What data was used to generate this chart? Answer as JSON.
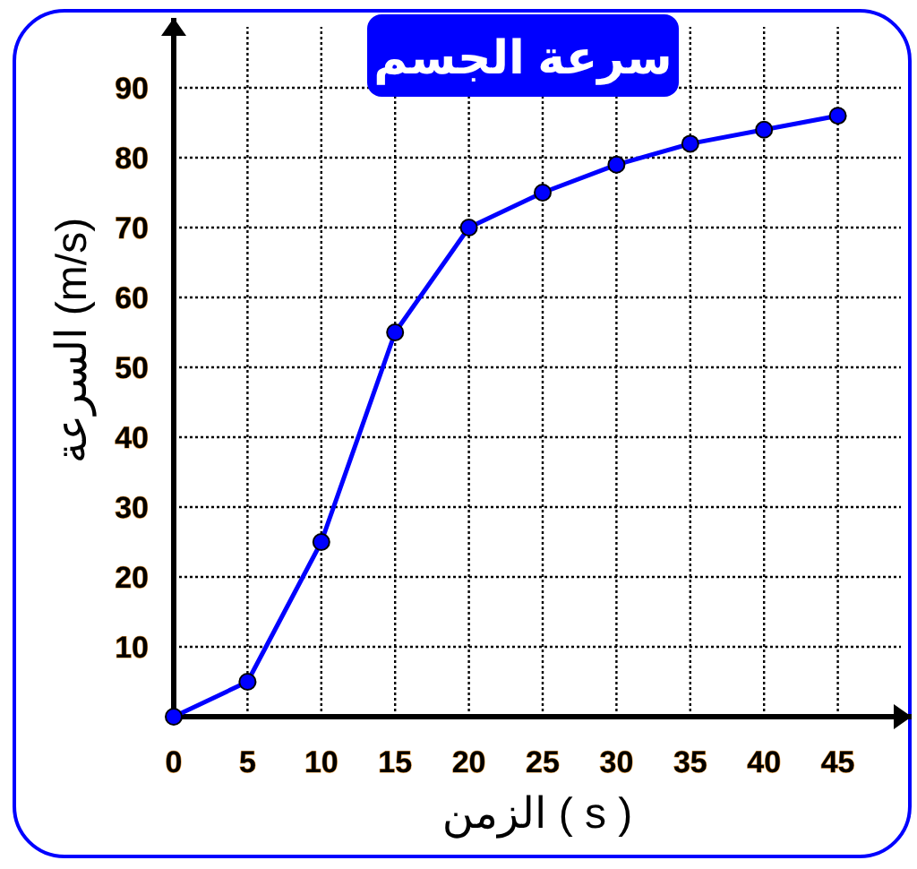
{
  "chart_data": {
    "type": "line",
    "title": "سرعة الجسم",
    "xlabel": "الزمن ( s )",
    "ylabel": "السرعة (m/s)",
    "x": [
      0,
      5,
      10,
      15,
      20,
      25,
      30,
      35,
      40,
      45
    ],
    "series": [
      {
        "color": "#0000ff",
        "values": [
          0,
          5,
          25,
          55,
          70,
          75,
          79,
          82,
          84,
          86
        ]
      }
    ],
    "xlim": [
      0,
      50
    ],
    "ylim": [
      0,
      100
    ],
    "xticks": [
      0,
      5,
      10,
      15,
      20,
      25,
      30,
      35,
      40,
      45
    ],
    "yticks": [
      10,
      20,
      30,
      40,
      50,
      60,
      70,
      80,
      90
    ],
    "grid": true,
    "marker": "circle",
    "line_style": "solid"
  }
}
